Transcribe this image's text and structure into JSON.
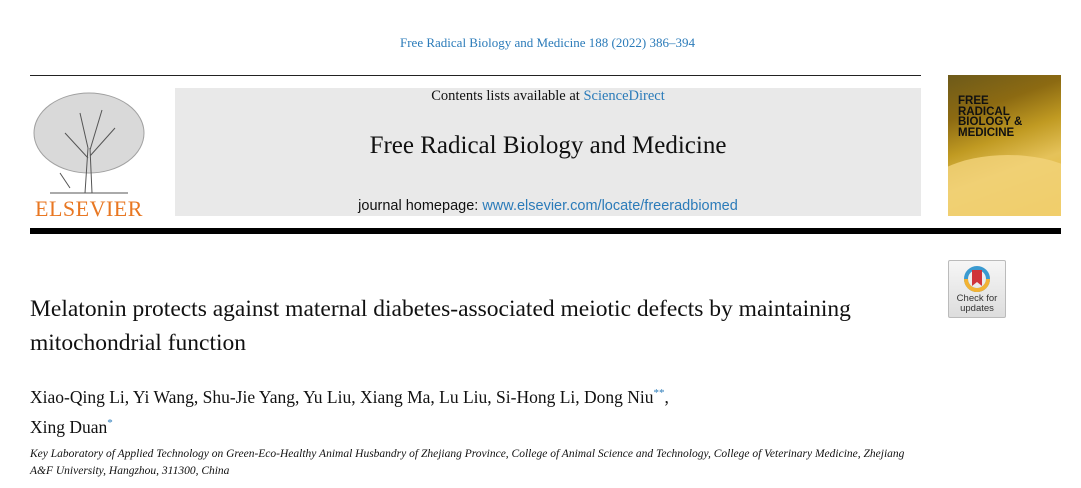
{
  "citation": "Free Radical Biology and Medicine 188 (2022) 386–394",
  "publisher": {
    "logo_text": "ELSEVIER",
    "logo_color": "#e87722"
  },
  "banner": {
    "contents_prefix": "Contents lists available at ",
    "contents_link": "ScienceDirect",
    "journal_title": "Free Radical Biology and Medicine",
    "homepage_prefix": "journal homepage: ",
    "homepage_link": "www.elsevier.com/locate/freeradbiomed"
  },
  "cover": {
    "title": "FREE RADICAL BIOLOGY & MEDICINE"
  },
  "check_updates": {
    "label": "Check for updates",
    "line1": "Check for",
    "line2": "updates"
  },
  "article": {
    "title": "Melatonin protects against maternal diabetes-associated meiotic defects by maintaining mitochondrial function",
    "authors_line1": "Xiao-Qing Li, Yi Wang, Shu-Jie Yang, Yu Liu, Xiang Ma, Lu Liu, Si-Hong Li, Dong Niu",
    "mark1": "**",
    "authors_line2": "Xing Duan",
    "mark2": "*",
    "affiliation": "Key Laboratory of Applied Technology on Green-Eco-Healthy Animal Husbandry of Zhejiang Province, College of Animal Science and Technology, College of Veterinary Medicine, Zhejiang A&F University, Hangzhou, 311300, China"
  },
  "colors": {
    "link": "#2b7bb9",
    "banner_bg": "#e9e9e9"
  }
}
